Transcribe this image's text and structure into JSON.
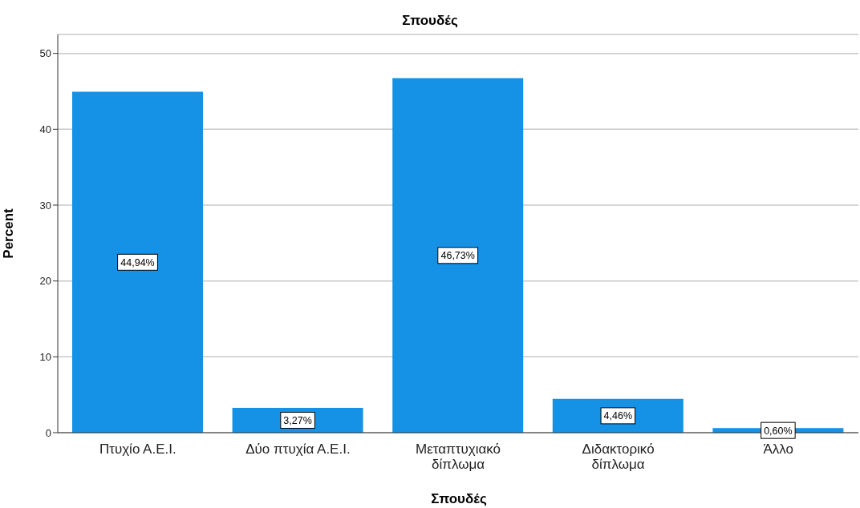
{
  "chart_data": {
    "type": "bar",
    "title": "Σπουδές",
    "xlabel": "Σπουδές",
    "ylabel": "Percent",
    "categories": [
      "Πτυχίο Α.Ε.Ι.",
      "Δύο πτυχία Α.Ε.Ι.",
      "Μεταπτυχιακό\nδίπλωμα",
      "Διδακτορικό\nδίπλωμα",
      "Άλλο"
    ],
    "values": [
      44.94,
      3.27,
      46.73,
      4.46,
      0.6
    ],
    "value_labels": [
      "44,94%",
      "3,27%",
      "46,73%",
      "4,46%",
      "0,60%"
    ],
    "color": "#1591e6",
    "ylim": [
      0,
      52.5
    ],
    "yticks": [
      0,
      10,
      20,
      30,
      40,
      50
    ],
    "grid": "y"
  }
}
